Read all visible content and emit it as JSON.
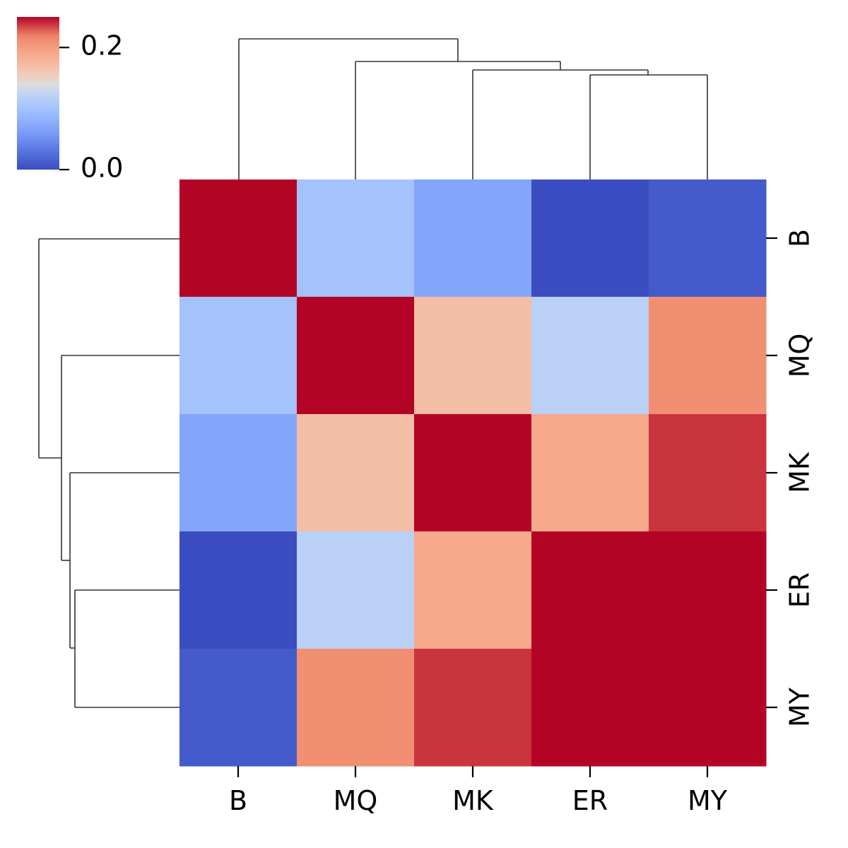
{
  "chart_data": {
    "type": "heatmap",
    "title": "",
    "xlabel": "",
    "ylabel": "",
    "x_categories": [
      "B",
      "MQ",
      "MK",
      "ER",
      "MY"
    ],
    "y_categories": [
      "B",
      "MQ",
      "MK",
      "ER",
      "MY"
    ],
    "values": [
      [
        0.26,
        0.1,
        0.07,
        0.0,
        0.01
      ],
      [
        0.1,
        0.26,
        0.17,
        0.12,
        0.21
      ],
      [
        0.07,
        0.17,
        0.26,
        0.19,
        0.24
      ],
      [
        0.0,
        0.12,
        0.19,
        0.26,
        0.26
      ],
      [
        0.01,
        0.21,
        0.24,
        0.26,
        0.26
      ]
    ],
    "colormap": "coolwarm",
    "vmin": 0.0,
    "vmax": 0.25,
    "colorbar": {
      "ticks": [
        0.0,
        0.2
      ],
      "tick_labels": [
        "0.0",
        "0.2"
      ],
      "placement": "top-left"
    },
    "column_dendrogram": true,
    "row_dendrogram": true,
    "grid": false
  }
}
